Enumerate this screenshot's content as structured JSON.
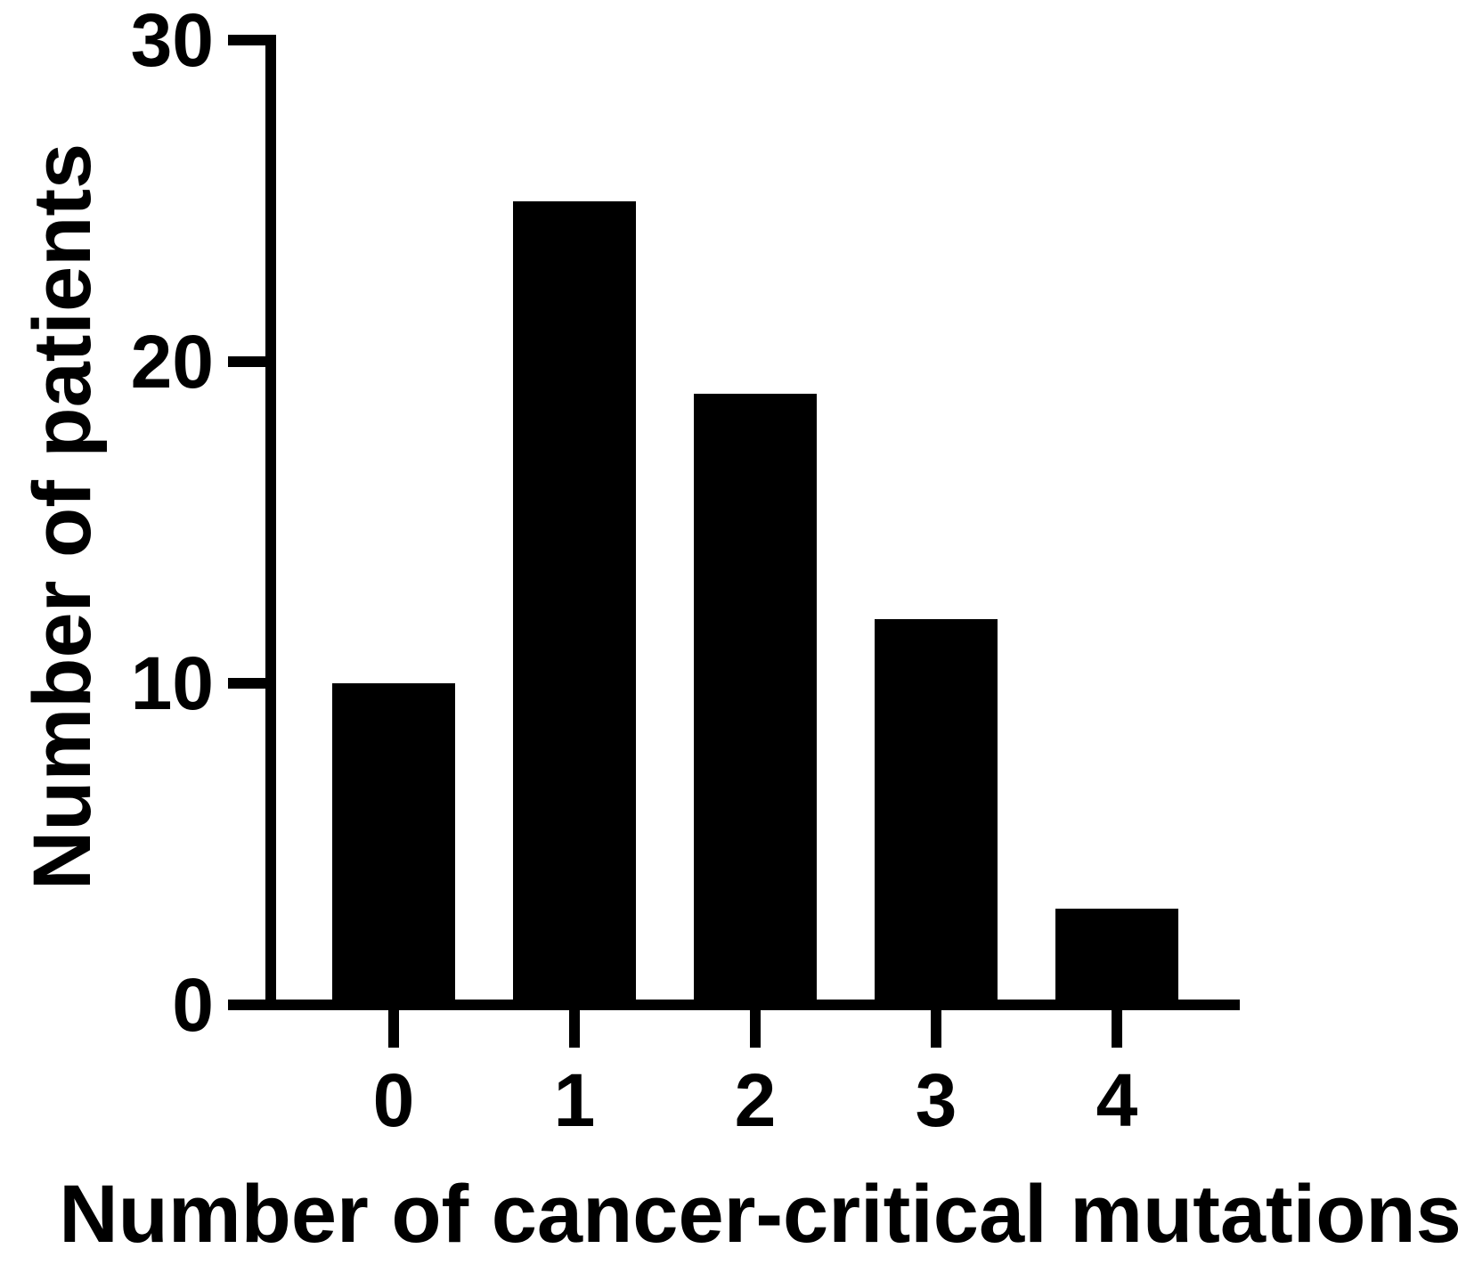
{
  "chart_data": {
    "type": "bar",
    "title": "",
    "categories": [
      "0",
      "1",
      "2",
      "3",
      "4"
    ],
    "values": [
      10,
      25,
      19,
      12,
      3
    ],
    "xlabel": "Number of cancer-critical mutations",
    "ylabel": "Number of patients",
    "ylim": [
      0,
      30
    ],
    "yticks": [
      0,
      10,
      20,
      30
    ],
    "grid": false,
    "legend": false,
    "bar_color": "#000000",
    "axis_color": "#000000",
    "background": "#ffffff",
    "tick_direction": "outward"
  }
}
